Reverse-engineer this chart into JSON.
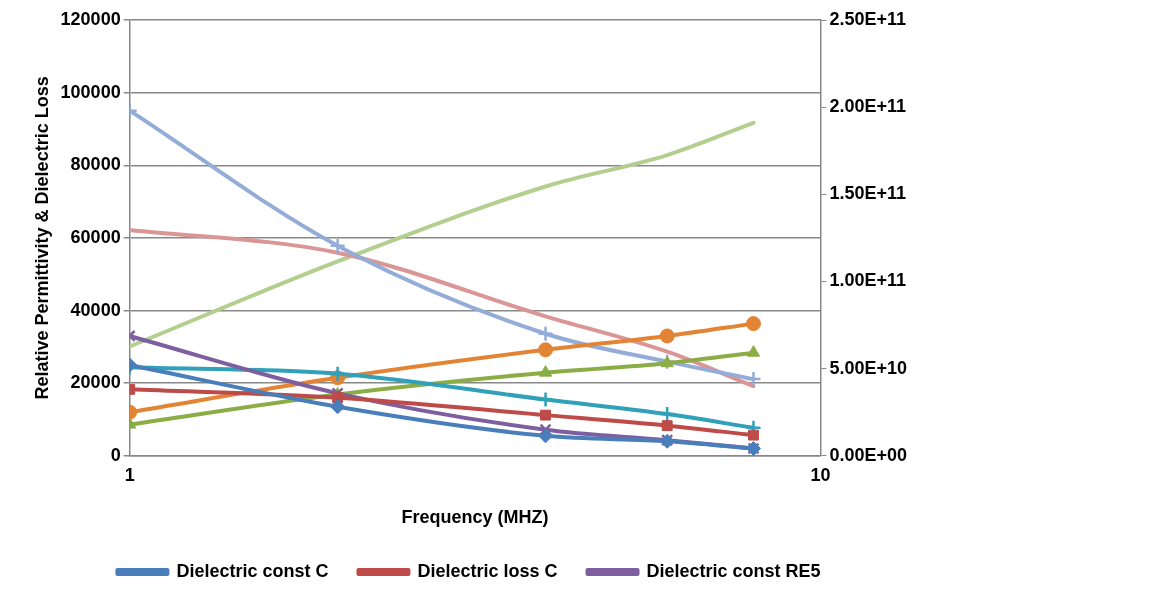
{
  "chart_data": {
    "type": "line",
    "xlabel": "Frequency (MHZ)",
    "ylabel": "Relative Permittivity & Dielectric Loss",
    "x": [
      1,
      2,
      4,
      6,
      8
    ],
    "xlim": [
      1,
      10
    ],
    "xticks": [
      1,
      10
    ],
    "log": "x",
    "ylim": [
      0,
      120000
    ],
    "yticks": [
      0,
      20000,
      40000,
      60000,
      80000,
      100000,
      120000
    ],
    "y2lim": [
      0,
      250000000000
    ],
    "y2ticks": [
      {
        "value": 0,
        "label": "0.00E+00"
      },
      {
        "value": 50000000000,
        "label": "5.00E+10"
      },
      {
        "value": 100000000000,
        "label": "1.00E+11"
      },
      {
        "value": 150000000000,
        "label": "1.50E+11"
      },
      {
        "value": 200000000000,
        "label": "2.00E+11"
      },
      {
        "value": 250000000000,
        "label": "2.50E+11"
      }
    ],
    "grid": "y",
    "legend": "bottom",
    "line_style": "solid",
    "series": [
      {
        "name": "Dielectric const C",
        "color": "#4a7ebb",
        "marker": "diamond",
        "values": [
          25000,
          13500,
          5500,
          4000,
          2000
        ]
      },
      {
        "name": "Dielectric loss C",
        "color": "#be4b48",
        "marker": "square",
        "values": [
          18300,
          16000,
          11200,
          8300,
          5700
        ]
      },
      {
        "name": "Dielectric const RE5",
        "color": "#7d5fa0",
        "marker": "x",
        "values": [
          33000,
          17200,
          7200,
          4300,
          2000
        ]
      },
      {
        "color": "#31a0b9",
        "marker": "cross",
        "values": [
          24400,
          22600,
          15500,
          11500,
          7700
        ]
      },
      {
        "color": "#e38434",
        "marker": "circle",
        "values": [
          12000,
          21500,
          29200,
          33000,
          36400
        ]
      },
      {
        "color": "#8aad45",
        "marker": "triangle",
        "values": [
          8600,
          16900,
          22900,
          25500,
          28400
        ]
      },
      {
        "color": "#94acd8",
        "marker": "cross",
        "axis": "y2",
        "values": [
          198000000000,
          120500000000,
          70000000000,
          54000000000,
          44000000000
        ]
      },
      {
        "color": "#d99694",
        "marker": "none",
        "axis": "y2",
        "values": [
          129500000000,
          116500000000,
          80000000000,
          59700000000,
          40000000000
        ]
      },
      {
        "color": "#b3cf8f",
        "marker": "none",
        "axis": "y2",
        "values": [
          62700000000,
          111500000000,
          154500000000,
          172500000000,
          191000000000
        ]
      }
    ]
  }
}
